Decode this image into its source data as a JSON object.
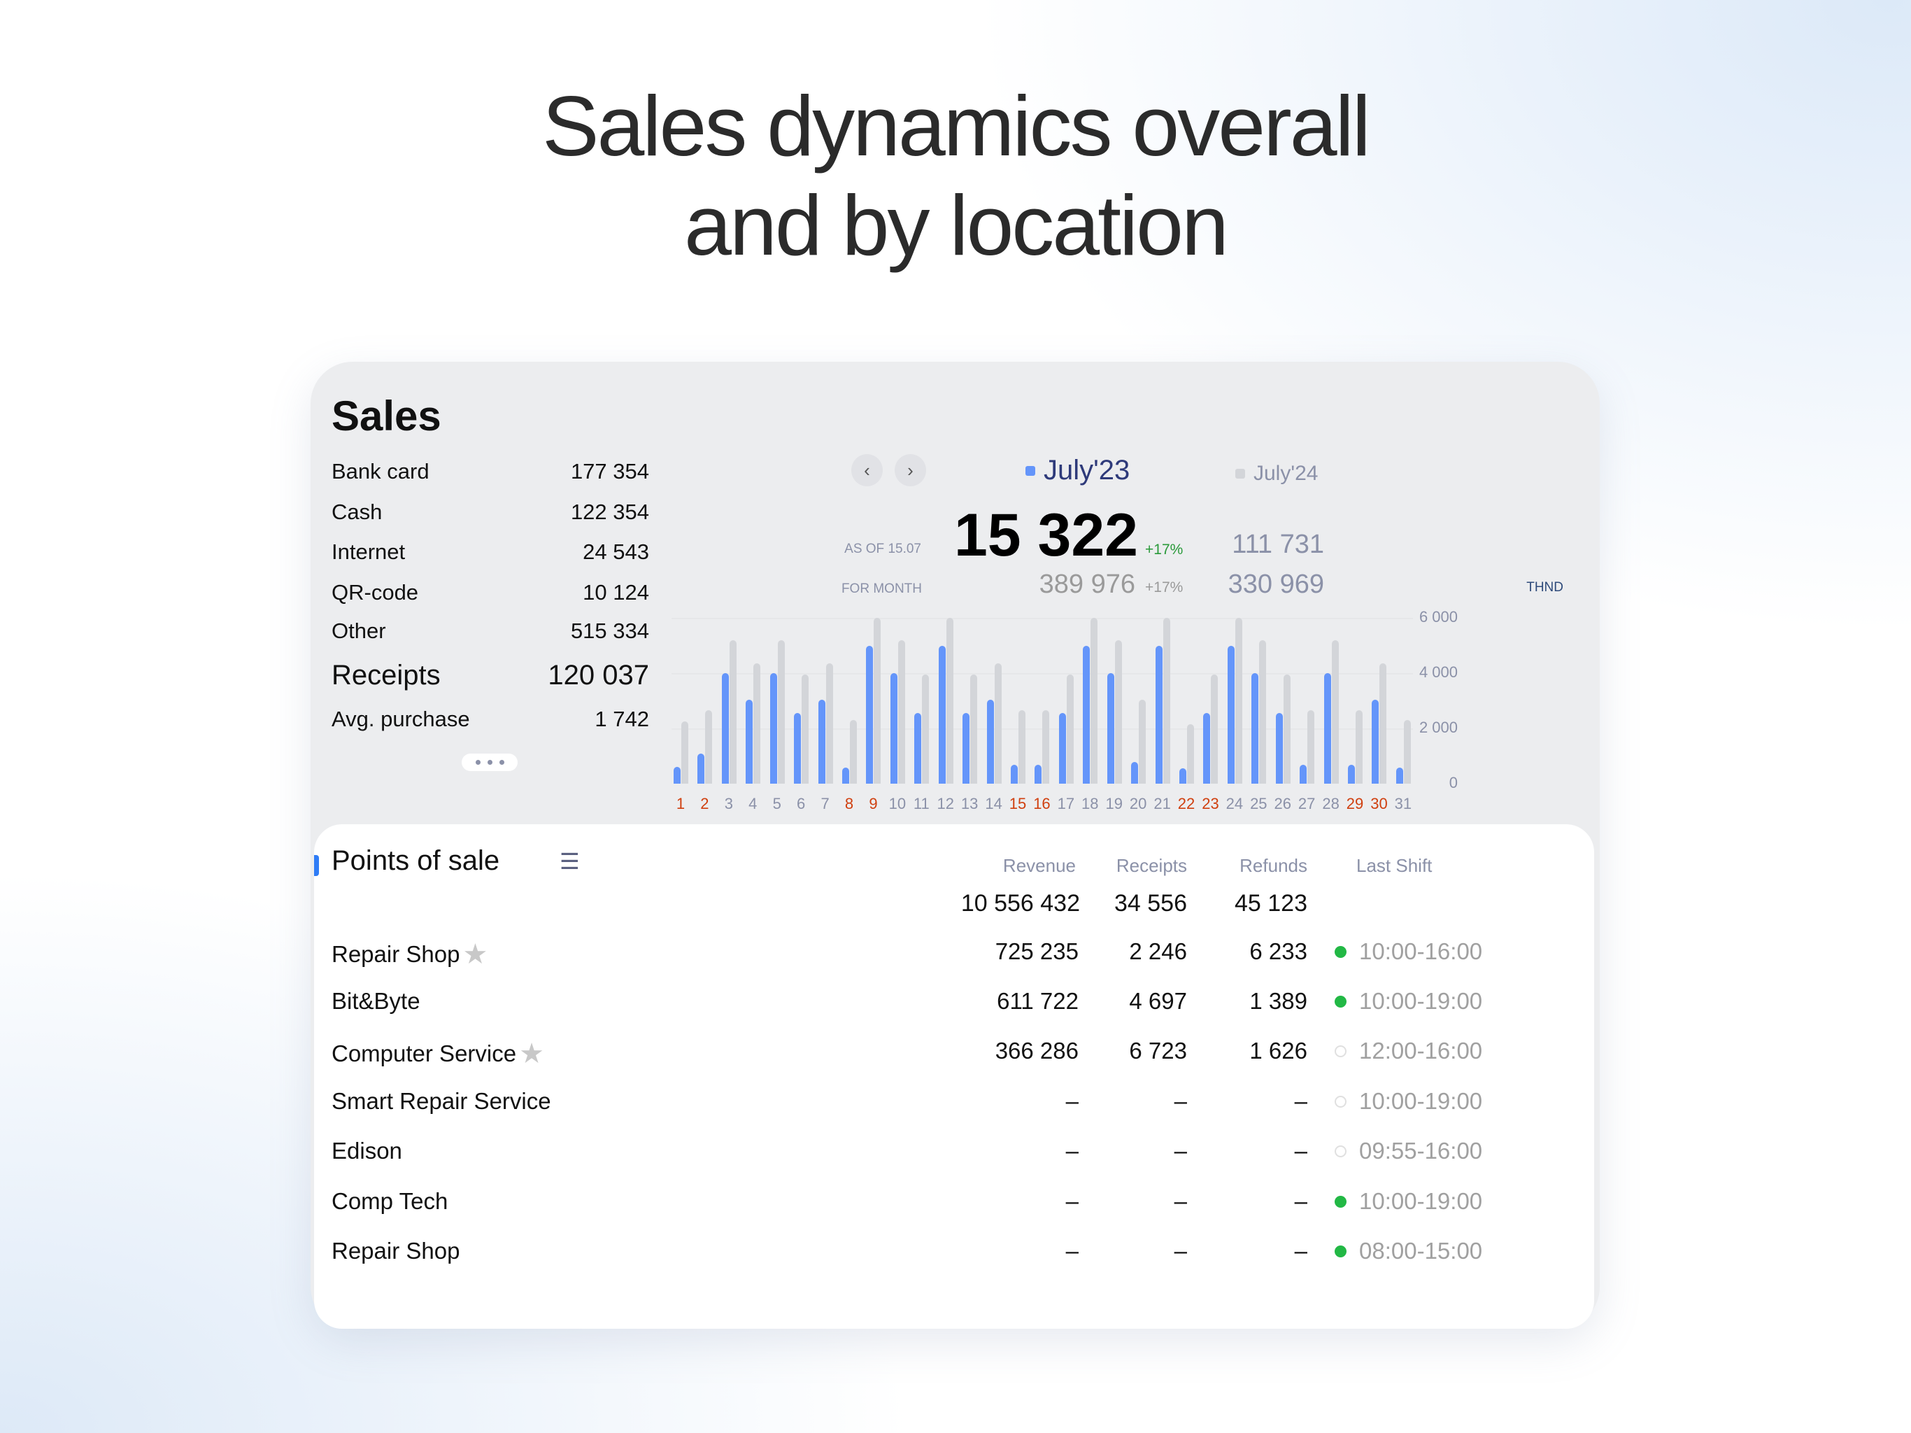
{
  "headline": {
    "line1": "Sales dynamics overall",
    "line2": "and by location"
  },
  "sales": {
    "title": "Sales",
    "rows": [
      {
        "label": "Bank card",
        "value": "177 354"
      },
      {
        "label": "Cash",
        "value": "122 354"
      },
      {
        "label": "Internet",
        "value": "24 543"
      },
      {
        "label": "QR-code",
        "value": "10 124"
      },
      {
        "label": "Other",
        "value": "515 334"
      },
      {
        "label": "Receipts",
        "value": "120 037",
        "emphasis": true
      },
      {
        "label": "Avg. purchase",
        "value": "1 742"
      }
    ],
    "more_icon": "ellipsis-icon"
  },
  "period": {
    "prev_icon": "chevron-left-icon",
    "next_icon": "chevron-right-icon",
    "current_label": "July'23",
    "compare_label": "July'24",
    "current_color": "#6495fa",
    "compare_color": "#d3d5d9",
    "as_of_label": "AS OF 15.07",
    "as_of_value": "15 322",
    "as_of_change": "+17%",
    "as_of_compare": "111 731",
    "month_label": "FOR MONTH",
    "month_value": "389 976",
    "month_change": "+17%",
    "month_compare": "330 969",
    "positive_color": "#2a9a3a"
  },
  "chart_data": {
    "type": "bar",
    "unit_label": "THND",
    "categories": [
      "1",
      "2",
      "3",
      "4",
      "5",
      "6",
      "7",
      "8",
      "9",
      "10",
      "11",
      "12",
      "13",
      "14",
      "15",
      "16",
      "17",
      "18",
      "19",
      "20",
      "21",
      "22",
      "23",
      "24",
      "25",
      "26",
      "27",
      "28",
      "29",
      "30",
      "31"
    ],
    "weekend_days": [
      "1",
      "2",
      "8",
      "9",
      "15",
      "16",
      "22",
      "23",
      "29",
      "30"
    ],
    "ylim": [
      0,
      6000
    ],
    "yticks": [
      "0",
      "2 000",
      "4 000",
      "6 000"
    ],
    "ytick_values": [
      0,
      2000,
      4000,
      6000
    ],
    "grid": true,
    "series": [
      {
        "name": "July'23",
        "values": [
          600,
          1100,
          4000,
          3050,
          4000,
          2550,
          3050,
          580,
          5000,
          4000,
          2550,
          5000,
          2550,
          3050,
          680,
          680,
          2550,
          5000,
          4000,
          780,
          5000,
          550,
          2550,
          5000,
          4000,
          2550,
          680,
          4000,
          680,
          3050,
          580
        ]
      },
      {
        "name": "July'24",
        "values": [
          2250,
          2650,
          5200,
          4350,
          5200,
          3950,
          4350,
          2300,
          6000,
          5200,
          3950,
          6000,
          3950,
          4350,
          2650,
          2650,
          3950,
          6000,
          5200,
          3050,
          6000,
          2150,
          3950,
          6000,
          5200,
          3950,
          2650,
          5200,
          2650,
          4350,
          2300
        ]
      }
    ]
  },
  "points_of_sale": {
    "title": "Points of sale",
    "list_icon": "list-icon",
    "columns": {
      "revenue": "Revenue",
      "receipts": "Receipts",
      "refunds": "Refunds",
      "last_shift": "Last Shift"
    },
    "totals": {
      "revenue": "10 556 432",
      "receipts": "34 556",
      "refunds": "45 123"
    },
    "rows": [
      {
        "name": "Repair Shop",
        "starred": true,
        "revenue": "725 235",
        "receipts": "2 246",
        "refunds": "6 233",
        "open": true,
        "shift": "10:00-16:00"
      },
      {
        "name": "Bit&Byte",
        "starred": false,
        "revenue": "611 722",
        "receipts": "4 697",
        "refunds": "1 389",
        "open": true,
        "shift": "10:00-19:00"
      },
      {
        "name": "Computer Service",
        "starred": true,
        "revenue": "366 286",
        "receipts": "6 723",
        "refunds": "1 626",
        "open": false,
        "shift": "12:00-16:00"
      },
      {
        "name": "Smart Repair Service",
        "starred": false,
        "revenue": "–",
        "receipts": "–",
        "refunds": "–",
        "open": false,
        "shift": "10:00-19:00"
      },
      {
        "name": "Edison",
        "starred": false,
        "revenue": "–",
        "receipts": "–",
        "refunds": "–",
        "open": false,
        "shift": "09:55-16:00"
      },
      {
        "name": "Comp Tech",
        "starred": false,
        "revenue": "–",
        "receipts": "–",
        "refunds": "–",
        "open": true,
        "shift": "10:00-19:00"
      },
      {
        "name": "Repair Shop",
        "starred": false,
        "revenue": "–",
        "receipts": "–",
        "refunds": "–",
        "open": true,
        "shift": "08:00-15:00"
      }
    ],
    "status_colors": {
      "open": "#22b845",
      "closed": "#e0e0e0"
    }
  }
}
